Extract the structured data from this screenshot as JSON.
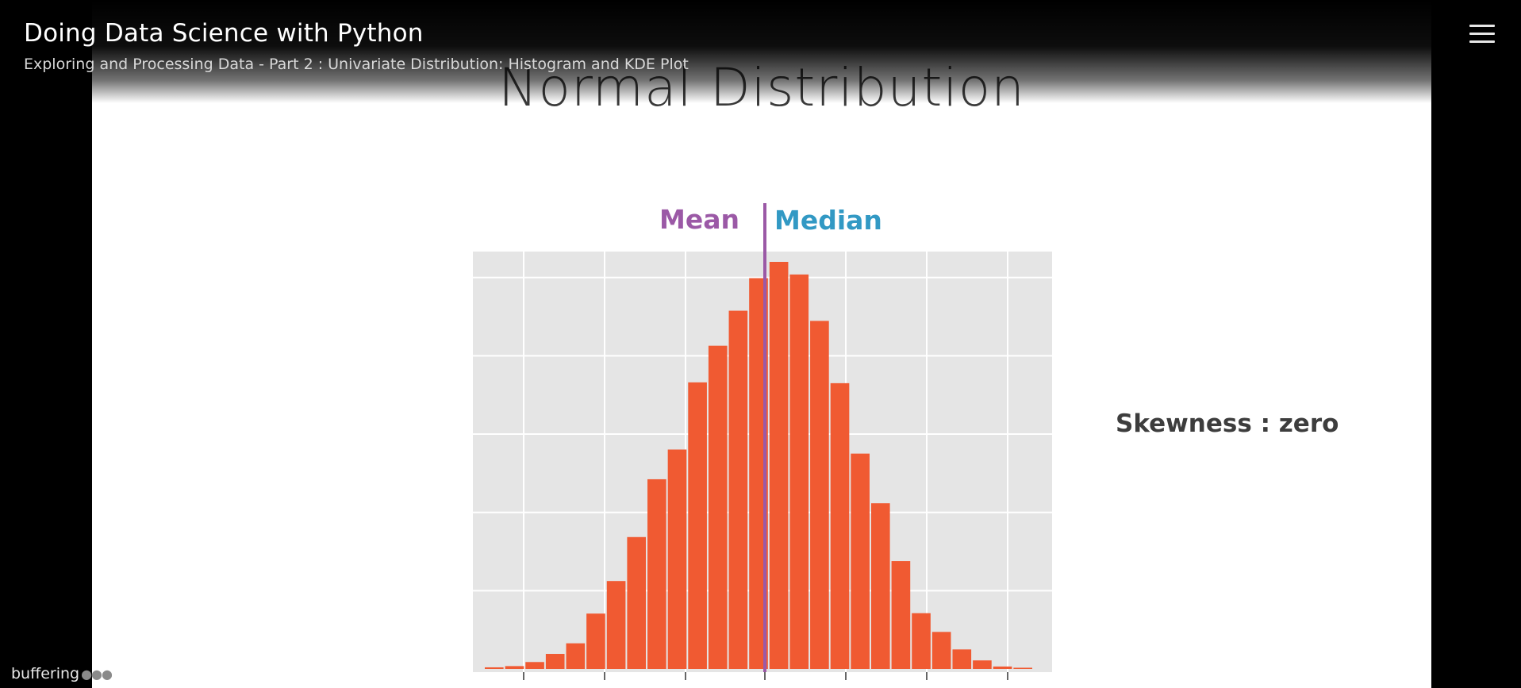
{
  "player": {
    "course_title": "Doing Data Science with Python",
    "module_title": "Exploring and Processing Data - Part 2 : Univariate Distribution: Histogram and KDE Plot",
    "menu_icon": "hamburger-menu-icon",
    "buffering_label": "buffering",
    "buffering_dots": "●●●"
  },
  "slide": {
    "title": "Normal Distribution",
    "skewness_label": "Skewness : zero"
  },
  "chart_data": {
    "type": "bar",
    "title": "",
    "xlabel": "",
    "ylabel": "",
    "ylim": [
      0,
      100
    ],
    "values": [
      0.4,
      0.7,
      1.7,
      3.7,
      6.3,
      13.6,
      21.6,
      32.4,
      46.6,
      53.9,
      70.4,
      79.4,
      88.0,
      96.0,
      100.0,
      96.9,
      85.5,
      70.2,
      52.9,
      40.7,
      26.5,
      13.7,
      9.1,
      4.8,
      2.1,
      0.6,
      0.3
    ],
    "grid": true,
    "annotations": [
      {
        "text": "Mean",
        "color": "#9b59a6"
      },
      {
        "text": "Median",
        "color": "#3299c4"
      }
    ],
    "bar_color": "#f05a32",
    "marker_line_color": "#9b59a6",
    "panel_color": "#e5e5e5"
  }
}
